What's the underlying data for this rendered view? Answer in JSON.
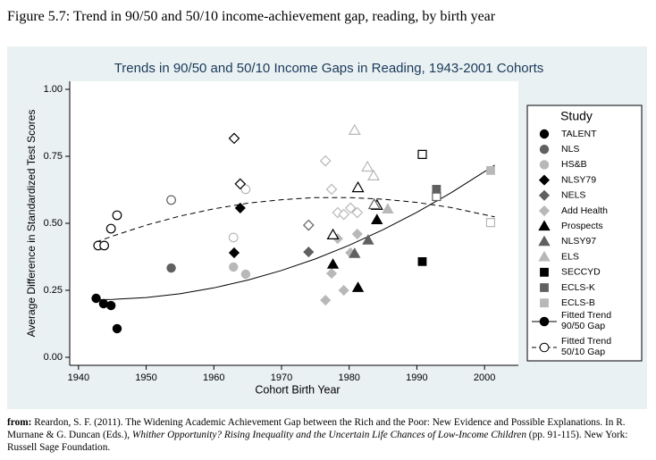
{
  "caption": "Figure 5.7: Trend in 90/50 and 50/10 income-achievement gap, reading, by birth year",
  "chart_data": {
    "type": "scatter",
    "title": "Trends in 90/50 and 50/10 Income Gaps in Reading, 1943-2001 Cohorts",
    "x_label": "Cohort Birth Year",
    "y_label": "Average Difference in Standardized Test Scores",
    "legend_title": "Study",
    "xlim": [
      1938.7,
      2005
    ],
    "xticks": [
      1940,
      1950,
      1960,
      1970,
      1980,
      1990,
      2000
    ],
    "ylim": [
      -0.03,
      1.03
    ],
    "yticks": [
      {
        "value": 0,
        "label": "0.00"
      },
      {
        "value": 0.25,
        "label": "0.25"
      },
      {
        "value": 0.5,
        "label": "0.50"
      },
      {
        "value": 0.75,
        "label": "0.75"
      },
      {
        "value": 1,
        "label": "1.00"
      }
    ],
    "series": [
      {
        "name": "TALENT",
        "marker": "circle",
        "color": "#000000",
        "x": [
          1942.6,
          1943.7,
          1944.8,
          1945.7
        ],
        "values": [
          0.22,
          0.2,
          0.193,
          0.107
        ],
        "hollow_x": [
          1942.9,
          1943.8,
          1944.8,
          1945.7
        ],
        "hollow_values": [
          0.417,
          0.417,
          0.48,
          0.53
        ]
      },
      {
        "name": "NLS",
        "marker": "circle",
        "color": "#606060",
        "x": [
          1953.7
        ],
        "values": [
          0.333
        ],
        "hollow_x": [
          1953.7
        ],
        "hollow_values": [
          0.587
        ]
      },
      {
        "name": "HS&B",
        "marker": "circle",
        "color": "#b8b8b8",
        "x": [
          1962.9,
          1964.7
        ],
        "values": [
          0.337,
          0.31
        ],
        "hollow_x": [
          1962.9,
          1964.7
        ],
        "hollow_values": [
          0.447,
          0.627
        ]
      },
      {
        "name": "NLSY79",
        "marker": "diamond",
        "color": "#000000",
        "x": [
          1963,
          1963.9
        ],
        "values": [
          0.39,
          0.557
        ],
        "hollow_x": [
          1963,
          1963.9
        ],
        "hollow_values": [
          0.817,
          0.647
        ]
      },
      {
        "name": "NELS",
        "marker": "diamond",
        "color": "#606060",
        "x": [
          1974
        ],
        "values": [
          0.393
        ],
        "hollow_x": [
          1974
        ],
        "hollow_values": [
          0.493
        ]
      },
      {
        "name": "Add Health",
        "marker": "diamond",
        "color": "#b8b8b8",
        "x": [
          1976.5,
          1977.4,
          1978.3,
          1979.2,
          1980.2,
          1981.2
        ],
        "values": [
          0.213,
          0.313,
          0.443,
          0.25,
          0.39,
          0.46
        ],
        "hollow_x": [
          1976.5,
          1977.4,
          1978.3,
          1979.2,
          1980.2,
          1981.2
        ],
        "hollow_values": [
          0.733,
          0.627,
          0.54,
          0.533,
          0.557,
          0.54
        ]
      },
      {
        "name": "Prospects",
        "marker": "triangle",
        "color": "#000000",
        "x": [
          1977.6,
          1981.3,
          1984.1
        ],
        "values": [
          0.347,
          0.26,
          0.513
        ],
        "hollow_x": [
          1977.6,
          1981.3,
          1984.1
        ],
        "hollow_values": [
          0.457,
          0.633,
          0.567
        ]
      },
      {
        "name": "NLSY97",
        "marker": "triangle",
        "color": "#606060",
        "x": [
          1980.8,
          1982.8
        ],
        "values": [
          0.387,
          0.437
        ],
        "hollow_x": [
          1983.7
        ],
        "hollow_values": [
          0.57
        ]
      },
      {
        "name": "ELS",
        "marker": "triangle",
        "color": "#b8b8b8",
        "x": [
          1985.7
        ],
        "values": [
          0.553
        ],
        "hollow_x": [
          1980.8,
          1982.7,
          1983.6
        ],
        "hollow_values": [
          0.847,
          0.71,
          0.677
        ]
      },
      {
        "name": "SECCYD",
        "marker": "square",
        "color": "#000000",
        "x": [
          1990.8
        ],
        "values": [
          0.357
        ],
        "hollow_x": [
          1990.8
        ],
        "hollow_values": [
          0.757
        ]
      },
      {
        "name": "ECLS-K",
        "marker": "square",
        "color": "#606060",
        "x": [
          1992.9
        ],
        "values": [
          0.627
        ],
        "hollow_x": [
          1992.9
        ],
        "hollow_values": [
          0.6
        ]
      },
      {
        "name": "ECLS-B",
        "marker": "square",
        "color": "#b8b8b8",
        "x": [
          2000.9
        ],
        "values": [
          0.697
        ],
        "hollow_x": [
          2000.9
        ],
        "hollow_values": [
          0.503
        ]
      }
    ],
    "fits": [
      {
        "name": "Fitted Trend 90/50 Gap",
        "dashed": false,
        "x": [
          1942.6,
          1945,
          1950,
          1955,
          1960,
          1965,
          1970,
          1975,
          1980,
          1985,
          1990,
          1995,
          2001.5
        ],
        "values": [
          0.215,
          0.216,
          0.223,
          0.237,
          0.259,
          0.288,
          0.324,
          0.367,
          0.418,
          0.476,
          0.541,
          0.613,
          0.717
        ]
      },
      {
        "name": "Fitted Trend 50/10 Gap",
        "dashed": true,
        "x": [
          1942.6,
          1945,
          1950,
          1955,
          1960,
          1965,
          1970,
          1975,
          1980,
          1985,
          1990,
          1995,
          2001.5
        ],
        "values": [
          0.43,
          0.452,
          0.493,
          0.527,
          0.554,
          0.575,
          0.588,
          0.596,
          0.596,
          0.59,
          0.578,
          0.559,
          0.524
        ]
      }
    ]
  },
  "footer": {
    "label": "from:",
    "text_before": "Reardon, S. F. (2011). The Widening Academic Achievement Gap between the Rich and the Poor: New Evidence and Possible Explanations. In R. Murnane & G. Duncan (Eds.), ",
    "italic": "Whither Opportunity? Rising Inequality and the Uncertain Life Chances of Low-Income Children",
    "text_after": " (pp. 91-115). New York: Russell Sage Foundation."
  }
}
